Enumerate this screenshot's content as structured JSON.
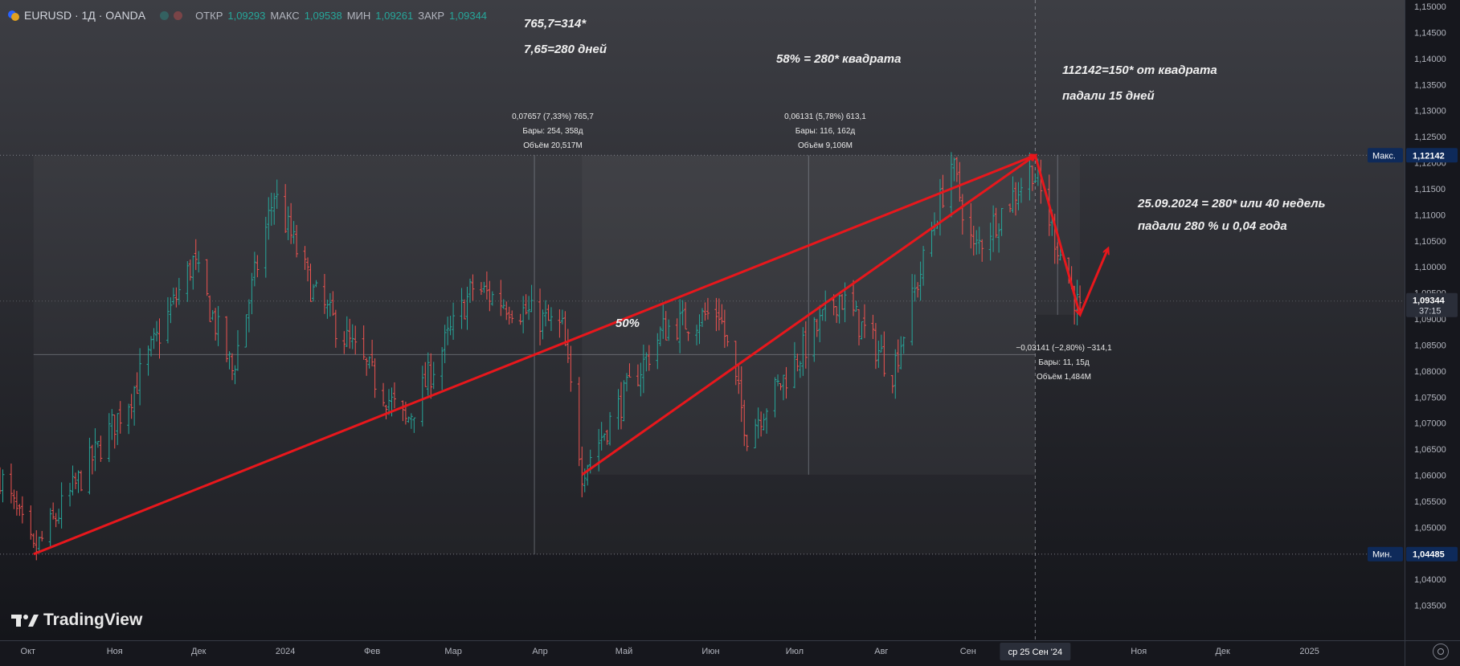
{
  "header": {
    "symbol": "EURUSD · 1Д · OANDA",
    "open_label": "ОТКР",
    "open_value": "1,09293",
    "high_label": "МАКС",
    "high_value": "1,09538",
    "low_label": "МИН",
    "low_value": "1,09261",
    "close_label": "ЗАКР",
    "close_value": "1,09344"
  },
  "annotations": {
    "a1": "765,7=314*",
    "a2": "7,65=280 дней",
    "a3": "58% = 280* квадрата",
    "a4": "112142=150* от  квадрата",
    "a5": "падали 15 дней",
    "a6": "25.09.2024 = 280*  или 40 недель",
    "a7": "падали 280 % и 0,04 года",
    "a8": "50%"
  },
  "measure1": {
    "l1": "0,07657 (7,33%) 765,7",
    "l2": "Бары: 254, 358д",
    "l3": "Объём 20,517M"
  },
  "measure2": {
    "l1": "0,06131 (5,78%) 613,1",
    "l2": "Бары: 116, 162д",
    "l3": "Объём 9,106M"
  },
  "measure3": {
    "l1": "−0,03141 (−2,80%) −314,1",
    "l2": "Бары: 11, 15д",
    "l3": "Объём 1,484M"
  },
  "branding": {
    "name": "TradingView"
  },
  "colors": {
    "up": "#26a69a",
    "down": "#ef5350",
    "drawing": "#e8171c",
    "bg_top": "#3d3e44",
    "bg_bottom": "#14151a"
  },
  "chart_data": {
    "type": "ohlc",
    "y_range": [
      1.03,
      1.15
    ],
    "price_ticks": [
      "1,15000",
      "1,14500",
      "1,14000",
      "1,13500",
      "1,13000",
      "1,12500",
      "1,12000",
      "1,11500",
      "1,11000",
      "1,10500",
      "1,10000",
      "1,09500",
      "1,09000",
      "1,08500",
      "1,08000",
      "1,07500",
      "1,07000",
      "1,06500",
      "1,06000",
      "1,05500",
      "1,05000",
      "1,04500",
      "1,04000",
      "1,03500"
    ],
    "price_tick_values": [
      1.15,
      1.145,
      1.14,
      1.135,
      1.13,
      1.125,
      1.12,
      1.115,
      1.11,
      1.105,
      1.1,
      1.095,
      1.09,
      1.085,
      1.08,
      1.075,
      1.07,
      1.065,
      1.06,
      1.055,
      1.05,
      1.045,
      1.04,
      1.035
    ],
    "x_labels": [
      "Окт",
      "Ноя",
      "Дек",
      "2024",
      "Фев",
      "Мар",
      "Апр",
      "Май",
      "Июн",
      "Июл",
      "Авг",
      "Сен",
      "Ноя",
      "Дек",
      "2025"
    ],
    "x_label_dates": [
      "2023-10-01",
      "2023-11-01",
      "2023-12-01",
      "2024-01-01",
      "2024-02-01",
      "2024-03-01",
      "2024-04-01",
      "2024-05-01",
      "2024-06-01",
      "2024-07-01",
      "2024-08-01",
      "2024-09-01",
      "2024-11-01",
      "2024-12-01",
      "2025-01-01"
    ],
    "x_range_dates": [
      "2023-09-21",
      "2025-02-04"
    ],
    "crosshair_label": "ср 25 Сен '24",
    "crosshair_date": "2024-09-25",
    "max_label": "Макс.",
    "max_value": "1,12142",
    "min_label": "Мин.",
    "min_value": "1,04485",
    "last_value": "1,09344",
    "countdown": "37:15",
    "anchors": [
      {
        "date": "2023-09-21",
        "price": 1.06
      },
      {
        "date": "2023-10-03",
        "price": 1.0449
      },
      {
        "date": "2023-11-06",
        "price": 1.0745
      },
      {
        "date": "2023-11-29",
        "price": 1.101
      },
      {
        "date": "2023-12-13",
        "price": 1.08
      },
      {
        "date": "2023-12-28",
        "price": 1.114
      },
      {
        "date": "2024-01-11",
        "price": 1.095
      },
      {
        "date": "2024-02-13",
        "price": 1.07
      },
      {
        "date": "2024-03-08",
        "price": 1.096
      },
      {
        "date": "2024-04-09",
        "price": 1.088
      },
      {
        "date": "2024-04-16",
        "price": 1.061
      },
      {
        "date": "2024-05-15",
        "price": 1.088
      },
      {
        "date": "2024-06-04",
        "price": 1.0915
      },
      {
        "date": "2024-06-14",
        "price": 1.068
      },
      {
        "date": "2024-07-17",
        "price": 1.0945
      },
      {
        "date": "2024-08-05",
        "price": 1.08
      },
      {
        "date": "2024-08-26",
        "price": 1.12
      },
      {
        "date": "2024-09-03",
        "price": 1.103
      },
      {
        "date": "2024-09-24",
        "price": 1.119
      },
      {
        "date": "2024-10-11",
        "price": 1.091
      }
    ],
    "arrows": [
      {
        "from": {
          "date": "2023-10-03",
          "price": 1.04485
        },
        "to": {
          "date": "2024-09-25",
          "price": 1.12142
        }
      },
      {
        "from": {
          "date": "2024-04-16",
          "price": 1.0601
        },
        "to": {
          "date": "2024-09-25",
          "price": 1.12142
        }
      },
      {
        "from": {
          "date": "2024-09-25",
          "price": 1.12142
        },
        "to": {
          "date": "2024-10-11",
          "price": 1.0908
        }
      },
      {
        "from": {
          "date": "2024-10-11",
          "price": 1.0908
        },
        "to": {
          "date": "2024-10-21",
          "price": 1.1035
        }
      }
    ]
  }
}
